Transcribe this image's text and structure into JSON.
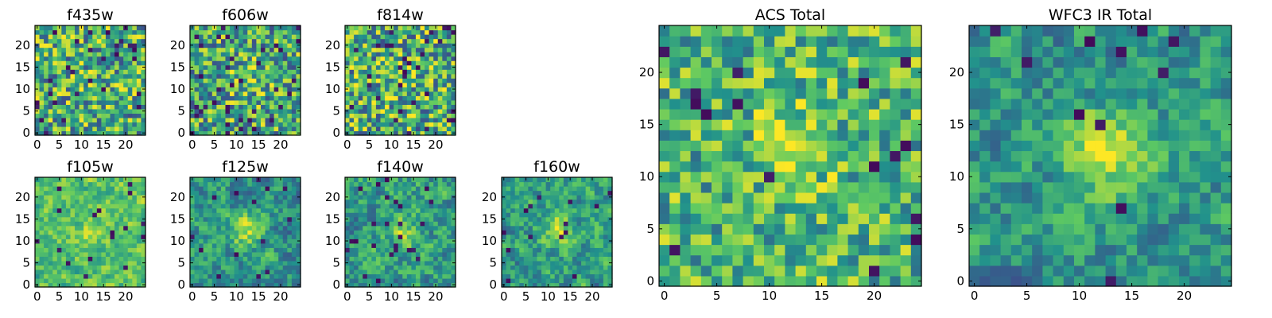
{
  "colormap": [
    "#440154",
    "#3b528b",
    "#21918c",
    "#5ec962",
    "#fde725"
  ],
  "chart_data": [
    {
      "type": "heatmap",
      "title": "f435w",
      "grid_size": 25,
      "seed": 11,
      "smooth": 0,
      "blob_strength": 0.05,
      "base_level": 0.62,
      "noise_amp": 0.38,
      "dark_frac": 0.05,
      "xticks": [
        0,
        5,
        10,
        15,
        20
      ],
      "yticks": [
        0,
        5,
        10,
        15,
        20
      ],
      "xlim": [
        0,
        24
      ],
      "ylim": [
        0,
        24
      ]
    },
    {
      "type": "heatmap",
      "title": "f606w",
      "grid_size": 25,
      "seed": 23,
      "smooth": 0,
      "blob_strength": 0.18,
      "base_level": 0.6,
      "noise_amp": 0.38,
      "dark_frac": 0.05,
      "xticks": [
        0,
        5,
        10,
        15,
        20
      ],
      "yticks": [
        0,
        5,
        10,
        15,
        20
      ],
      "xlim": [
        0,
        24
      ],
      "ylim": [
        0,
        24
      ]
    },
    {
      "type": "heatmap",
      "title": "f814w",
      "grid_size": 25,
      "seed": 37,
      "smooth": 0,
      "blob_strength": 0.08,
      "base_level": 0.63,
      "noise_amp": 0.4,
      "dark_frac": 0.05,
      "xticks": [
        0,
        5,
        10,
        15,
        20
      ],
      "yticks": [
        0,
        5,
        10,
        15,
        20
      ],
      "xlim": [
        0,
        24
      ],
      "ylim": [
        0,
        24
      ]
    },
    {
      "type": "heatmap",
      "title": "f105w",
      "grid_size": 25,
      "seed": 41,
      "smooth": 1,
      "blob_strength": 0.15,
      "base_level": 0.7,
      "noise_amp": 0.3,
      "dark_frac": 0.02,
      "xticks": [
        0,
        5,
        10,
        15,
        20
      ],
      "yticks": [
        0,
        5,
        10,
        15,
        20
      ],
      "xlim": [
        0,
        24
      ],
      "ylim": [
        0,
        24
      ]
    },
    {
      "type": "heatmap",
      "title": "f125w",
      "grid_size": 25,
      "seed": 53,
      "smooth": 1,
      "blob_strength": 0.35,
      "base_level": 0.52,
      "noise_amp": 0.34,
      "dark_frac": 0.03,
      "xticks": [
        0,
        5,
        10,
        15,
        20
      ],
      "yticks": [
        0,
        5,
        10,
        15,
        20
      ],
      "xlim": [
        0,
        24
      ],
      "ylim": [
        0,
        24
      ]
    },
    {
      "type": "heatmap",
      "title": "f140w",
      "grid_size": 25,
      "seed": 67,
      "smooth": 1,
      "blob_strength": 0.22,
      "base_level": 0.56,
      "noise_amp": 0.36,
      "dark_frac": 0.03,
      "xticks": [
        0,
        5,
        10,
        15,
        20
      ],
      "yticks": [
        0,
        5,
        10,
        15,
        20
      ],
      "xlim": [
        0,
        24
      ],
      "ylim": [
        0,
        24
      ]
    },
    {
      "type": "heatmap",
      "title": "f160w",
      "grid_size": 25,
      "seed": 79,
      "smooth": 1,
      "blob_strength": 0.32,
      "base_level": 0.56,
      "noise_amp": 0.34,
      "dark_frac": 0.03,
      "xticks": [
        0,
        5,
        10,
        15,
        20
      ],
      "yticks": [
        0,
        5,
        10,
        15,
        20
      ],
      "xlim": [
        0,
        24
      ],
      "ylim": [
        0,
        24
      ]
    },
    {
      "type": "heatmap",
      "title": "ACS Total",
      "grid_size": 25,
      "seed": 89,
      "smooth": 0,
      "blob_strength": 0.25,
      "base_level": 0.66,
      "noise_amp": 0.3,
      "dark_frac": 0.025,
      "xticks": [
        0,
        5,
        10,
        15,
        20
      ],
      "yticks": [
        0,
        5,
        10,
        15,
        20
      ],
      "xlim": [
        0,
        24
      ],
      "ylim": [
        0,
        24
      ]
    },
    {
      "type": "heatmap",
      "title": "WFC3 IR Total",
      "grid_size": 25,
      "seed": 97,
      "smooth": 1,
      "blob_strength": 0.45,
      "base_level": 0.52,
      "noise_amp": 0.32,
      "dark_frac": 0.025,
      "xticks": [
        0,
        5,
        10,
        15,
        20
      ],
      "yticks": [
        0,
        5,
        10,
        15,
        20
      ],
      "xlim": [
        0,
        24
      ],
      "ylim": [
        0,
        24
      ]
    }
  ]
}
